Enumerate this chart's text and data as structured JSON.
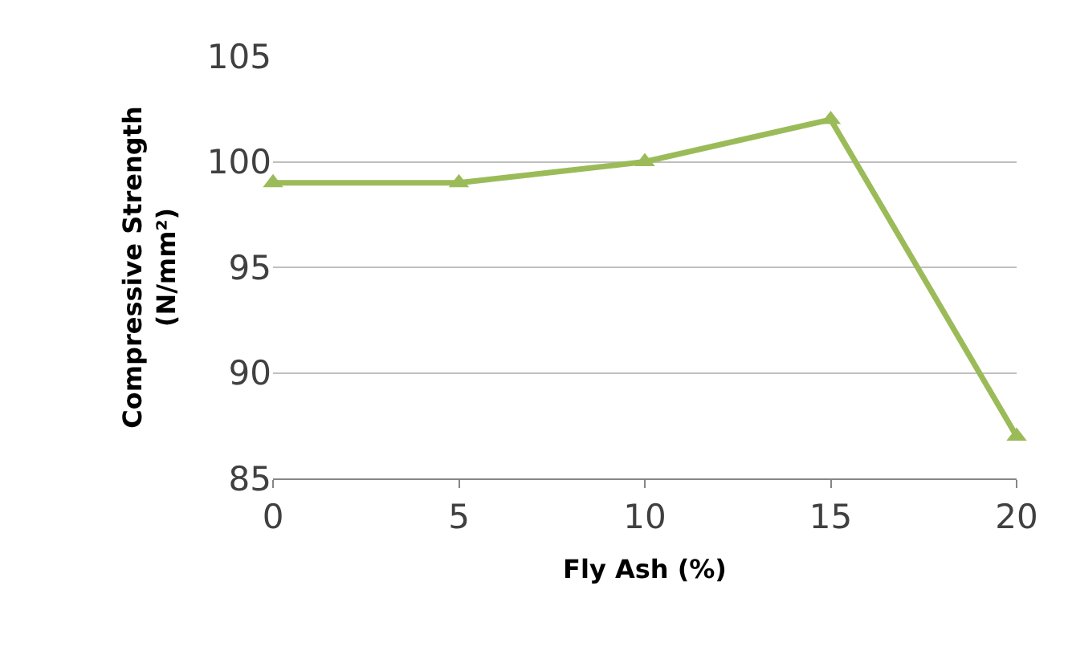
{
  "chart_data": {
    "type": "line",
    "xlabel": "Fly Ash (%)",
    "ylabel": "Compressive Strength\n(N/mm²)",
    "x": [
      0,
      5,
      10,
      15,
      20
    ],
    "series": [
      {
        "color": "#9bbb59",
        "values": [
          99,
          99,
          100,
          102,
          87
        ]
      }
    ],
    "xlim": [
      0,
      20
    ],
    "xticks": [
      0,
      5,
      10,
      15,
      20
    ],
    "ylim": [
      85,
      105
    ],
    "yticks": [
      85,
      90,
      95,
      100,
      105
    ],
    "grid": "y",
    "marker": "triangle",
    "line_style": "solid"
  }
}
